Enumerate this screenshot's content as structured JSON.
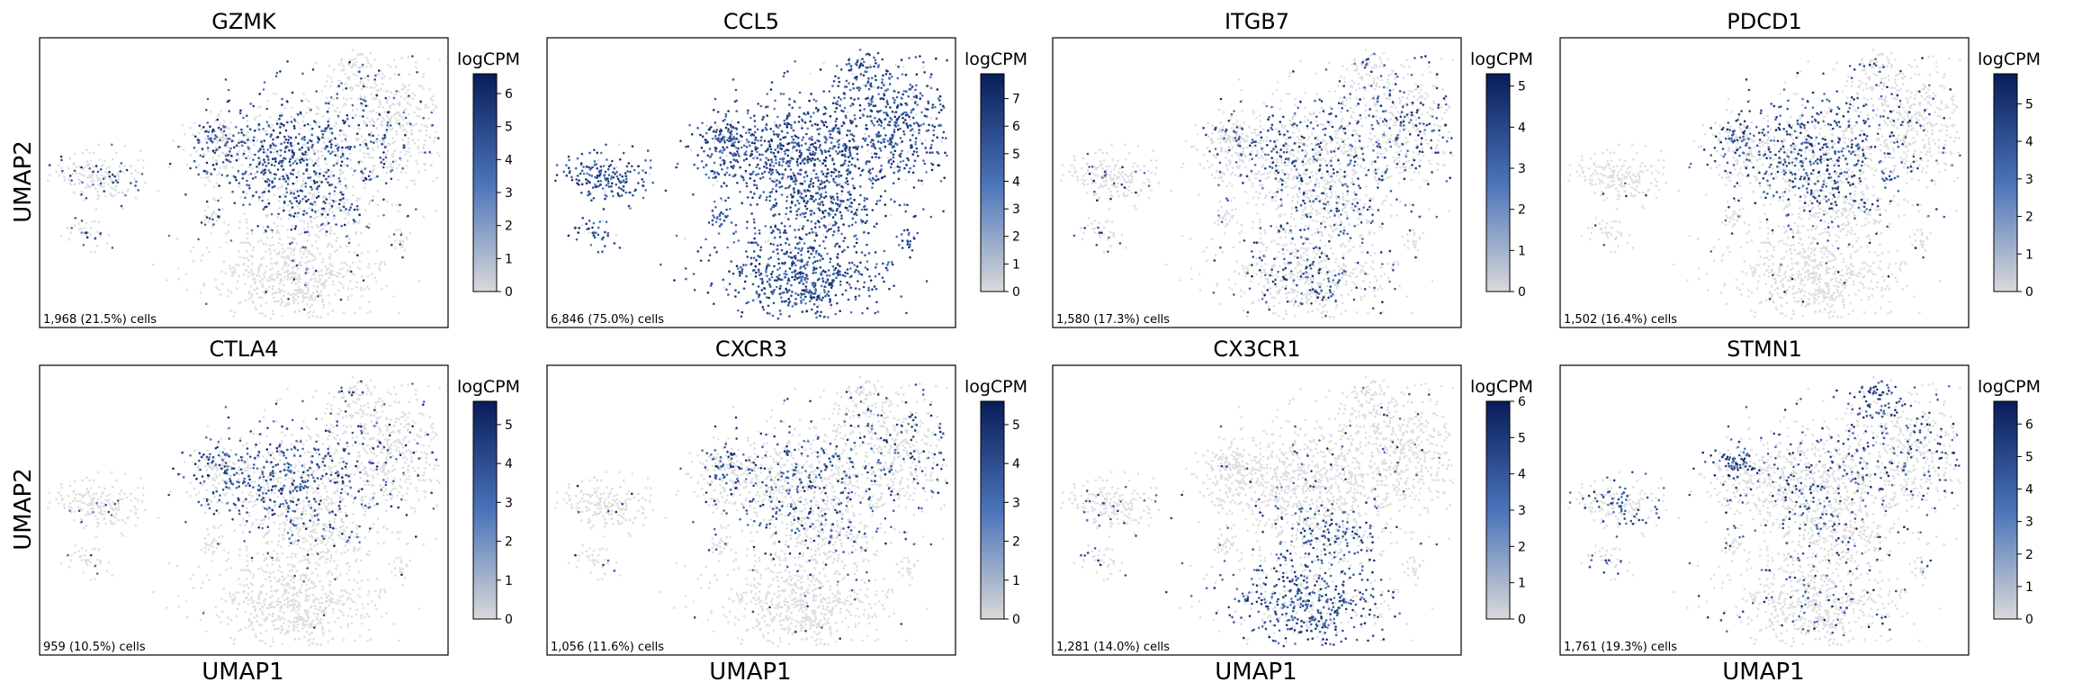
{
  "figure": {
    "xlabel": "UMAP1",
    "ylabel": "UMAP2",
    "colorbar_label": "logCPM",
    "colorscale": {
      "low": "#d9d9d9",
      "mid": "#4a73b9",
      "high": "#081d58"
    },
    "background_cell_color": "#dedede"
  },
  "chart_data": [
    {
      "type": "scatter",
      "title": "GZMK",
      "count_label": "1,968 (21.5%) cells",
      "colorbar_max": 6.6,
      "colorbar_ticks": [
        0,
        1,
        2,
        3,
        4,
        5,
        6
      ],
      "highlight_profile": "gzmk"
    },
    {
      "type": "scatter",
      "title": "CCL5",
      "count_label": "6,846 (75.0%) cells",
      "colorbar_max": 7.9,
      "colorbar_ticks": [
        0,
        1,
        2,
        3,
        4,
        5,
        6,
        7
      ],
      "highlight_profile": "ccl5"
    },
    {
      "type": "scatter",
      "title": "ITGB7",
      "count_label": "1,580 (17.3%) cells",
      "colorbar_max": 5.3,
      "colorbar_ticks": [
        0,
        1,
        2,
        3,
        4,
        5
      ],
      "highlight_profile": "itgb7"
    },
    {
      "type": "scatter",
      "title": "PDCD1",
      "count_label": "1,502 (16.4%) cells",
      "colorbar_max": 5.8,
      "colorbar_ticks": [
        0,
        1,
        2,
        3,
        4,
        5
      ],
      "highlight_profile": "pdcd1"
    },
    {
      "type": "scatter",
      "title": "CTLA4",
      "count_label": "959 (10.5%) cells",
      "colorbar_max": 5.6,
      "colorbar_ticks": [
        0,
        1,
        2,
        3,
        4,
        5
      ],
      "highlight_profile": "ctla4"
    },
    {
      "type": "scatter",
      "title": "CXCR3",
      "count_label": "1,056 (11.6%) cells",
      "colorbar_max": 5.6,
      "colorbar_ticks": [
        0,
        1,
        2,
        3,
        4,
        5
      ],
      "highlight_profile": "cxcr3"
    },
    {
      "type": "scatter",
      "title": "CX3CR1",
      "count_label": "1,281 (14.0%) cells",
      "colorbar_max": 6.0,
      "colorbar_ticks": [
        0,
        1,
        2,
        3,
        4,
        5,
        6
      ],
      "highlight_profile": "cx3cr1"
    },
    {
      "type": "scatter",
      "title": "STMN1",
      "count_label": "1,761 (19.3%) cells",
      "colorbar_max": 6.7,
      "colorbar_ticks": [
        0,
        1,
        2,
        3,
        4,
        5,
        6
      ],
      "highlight_profile": "stmn1"
    }
  ]
}
